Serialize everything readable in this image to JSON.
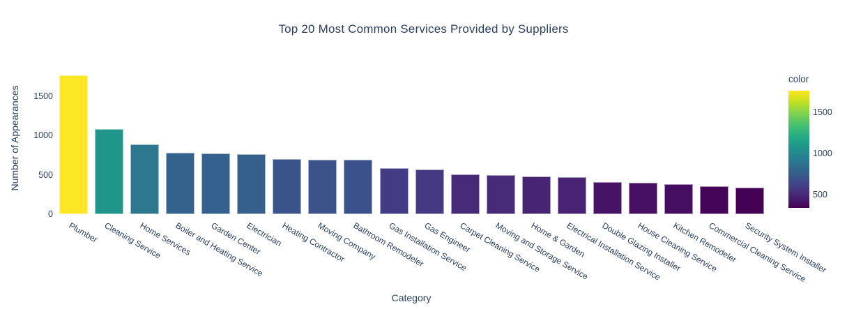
{
  "chart_data": {
    "type": "bar",
    "title": "Top 20 Most Common Services Provided by Suppliers",
    "xlabel": "Category",
    "ylabel": "Number of Appearances",
    "categories": [
      "Plumber",
      "Cleaning Service",
      "Home Services",
      "Boiler and Heating Service",
      "Garden Center",
      "Electrician",
      "Heating Contractor",
      "Moving Company",
      "Bathroom Remodeler",
      "Gas Installation Service",
      "Gas Engineer",
      "Carpet Cleaning Service",
      "Moving and Storage Service",
      "Home & Garden",
      "Electrical Installation Service",
      "Double Glazing Installer",
      "House Cleaning Service",
      "Kitchen Remodeler",
      "Commercial Cleaning Service",
      "Security System Installer"
    ],
    "values": [
      1760,
      1080,
      885,
      776,
      766,
      760,
      698,
      692,
      688,
      585,
      568,
      505,
      500,
      478,
      472,
      407,
      396,
      385,
      355,
      336
    ],
    "bar_colors": [
      "#fde725",
      "#20968b",
      "#2d788e",
      "#34628d",
      "#34618d",
      "#35608c",
      "#3b538b",
      "#3b528b",
      "#3b518b",
      "#433c84",
      "#443982",
      "#472b79",
      "#472a78",
      "#482574",
      "#482373",
      "#471366",
      "#471063",
      "#460e60",
      "#450659",
      "#440154"
    ],
    "yticks": [
      0,
      500,
      1000,
      1500
    ],
    "ylim": [
      0,
      1920
    ],
    "grid": false,
    "plot_bgcolor": "#ffffff",
    "text_color": "#2a3f5f",
    "xtick_angle_deg": 30,
    "colorbar": {
      "title": "color",
      "min": 336,
      "max": 1760,
      "ticks": [
        1500,
        1000,
        500
      ],
      "colorscale": "viridis",
      "gradient_stops_bottom_to_top": [
        "#440154",
        "#48186a",
        "#472d7b",
        "#424086",
        "#3b528b",
        "#33638d",
        "#2c728e",
        "#26828e",
        "#21918c",
        "#1fa088",
        "#28ae80",
        "#3fbc73",
        "#5ec962",
        "#84d44b",
        "#addc30",
        "#d8e219",
        "#fde725"
      ]
    }
  }
}
